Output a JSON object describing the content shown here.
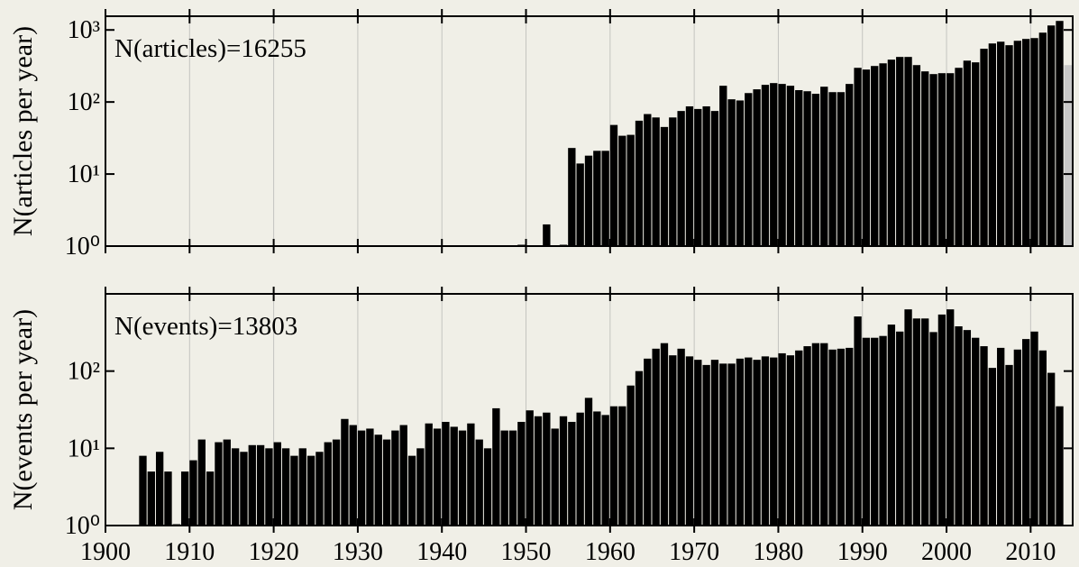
{
  "chart_data": [
    {
      "type": "bar",
      "annotation": "N(articles)=16255",
      "ylabel": "N(articles per year)",
      "log_y": true,
      "grid": true,
      "xlim": [
        1900,
        2015
      ],
      "xticks": [
        1900,
        1910,
        1920,
        1930,
        1940,
        1950,
        1960,
        1970,
        1980,
        1990,
        2000,
        2010
      ],
      "xtick_labels": false,
      "ylim": [
        1,
        1550
      ],
      "yticks": [
        {
          "value": 1,
          "label": "10⁰"
        },
        {
          "value": 10,
          "label": "10¹"
        },
        {
          "value": 100,
          "label": "10²"
        },
        {
          "value": 1000,
          "label": "10³"
        }
      ],
      "series": [
        {
          "color": "#000000",
          "x": [
            1949,
            1952,
            1954,
            1955,
            1956,
            1957,
            1958,
            1959,
            1960,
            1961,
            1962,
            1963,
            1964,
            1965,
            1966,
            1967,
            1968,
            1969,
            1970,
            1971,
            1972,
            1973,
            1974,
            1975,
            1976,
            1977,
            1978,
            1979,
            1980,
            1981,
            1982,
            1983,
            1984,
            1985,
            1986,
            1987,
            1988,
            1989,
            1990,
            1991,
            1992,
            1993,
            1994,
            1995,
            1996,
            1997,
            1998,
            1999,
            2000,
            2001,
            2002,
            2003,
            2004,
            2005,
            2006,
            2007,
            2008,
            2009,
            2010,
            2011,
            2012,
            2013
          ],
          "values": [
            1,
            2,
            1,
            23,
            14,
            18,
            21,
            21,
            48,
            34,
            35,
            55,
            68,
            61,
            45,
            61,
            75,
            87,
            80,
            87,
            75,
            168,
            109,
            105,
            133,
            150,
            173,
            183,
            178,
            168,
            146,
            141,
            130,
            163,
            137,
            137,
            178,
            298,
            282,
            316,
            344,
            387,
            422,
            422,
            325,
            266,
            244,
            251,
            251,
            298,
            375,
            355,
            548,
            649,
            687,
            614,
            707,
            750,
            771,
            917,
            1153,
            1334
          ]
        },
        {
          "color": "#c8c8c8",
          "x": [
            2014
          ],
          "values": [
            325
          ]
        }
      ]
    },
    {
      "type": "bar",
      "annotation": "N(events)=13803",
      "ylabel": "N(events per year)",
      "log_y": true,
      "grid": true,
      "xlim": [
        1900,
        2015
      ],
      "xticks": [
        1900,
        1910,
        1920,
        1930,
        1940,
        1950,
        1960,
        1970,
        1980,
        1990,
        2000,
        2010
      ],
      "xtick_labels": true,
      "ylim": [
        1,
        1000
      ],
      "yticks": [
        {
          "value": 1,
          "label": "10⁰"
        },
        {
          "value": 10,
          "label": "10¹"
        },
        {
          "value": 100,
          "label": "10²"
        }
      ],
      "series": [
        {
          "color": "#000000",
          "x": [
            1904,
            1905,
            1906,
            1907,
            1908,
            1909,
            1910,
            1911,
            1912,
            1913,
            1914,
            1915,
            1916,
            1917,
            1918,
            1919,
            1920,
            1921,
            1922,
            1923,
            1924,
            1925,
            1926,
            1927,
            1928,
            1929,
            1930,
            1931,
            1932,
            1933,
            1934,
            1935,
            1936,
            1937,
            1938,
            1939,
            1940,
            1941,
            1942,
            1943,
            1944,
            1945,
            1946,
            1947,
            1948,
            1949,
            1950,
            1951,
            1952,
            1953,
            1954,
            1955,
            1956,
            1957,
            1958,
            1959,
            1960,
            1961,
            1962,
            1963,
            1964,
            1965,
            1966,
            1967,
            1968,
            1969,
            1970,
            1971,
            1972,
            1973,
            1974,
            1975,
            1976,
            1977,
            1978,
            1979,
            1980,
            1981,
            1982,
            1983,
            1984,
            1985,
            1986,
            1987,
            1988,
            1989,
            1990,
            1991,
            1992,
            1993,
            1994,
            1995,
            1996,
            1997,
            1998,
            1999,
            2000,
            2001,
            2002,
            2003,
            2004,
            2005,
            2006,
            2007,
            2008,
            2009,
            2010,
            2011,
            2012,
            2013
          ],
          "values": [
            8,
            5,
            9,
            5,
            1,
            5,
            7,
            13,
            5,
            12,
            13,
            10,
            9,
            11,
            11,
            10,
            12,
            10,
            8,
            10,
            8,
            9,
            12,
            13,
            24,
            20,
            17,
            18,
            15,
            13,
            17,
            20,
            8,
            10,
            21,
            18,
            22,
            19,
            17,
            21,
            13,
            10,
            33,
            17,
            17,
            22,
            31,
            26,
            29,
            18,
            26,
            22,
            29,
            45,
            30,
            27,
            35,
            35,
            65,
            100,
            145,
            195,
            230,
            160,
            195,
            155,
            140,
            120,
            140,
            125,
            125,
            145,
            150,
            140,
            155,
            150,
            170,
            160,
            185,
            210,
            230,
            230,
            190,
            195,
            200,
            510,
            270,
            270,
            285,
            400,
            325,
            630,
            480,
            480,
            320,
            540,
            630,
            380,
            340,
            270,
            210,
            110,
            200,
            120,
            190,
            260,
            325,
            185,
            95,
            35
          ]
        }
      ]
    }
  ]
}
